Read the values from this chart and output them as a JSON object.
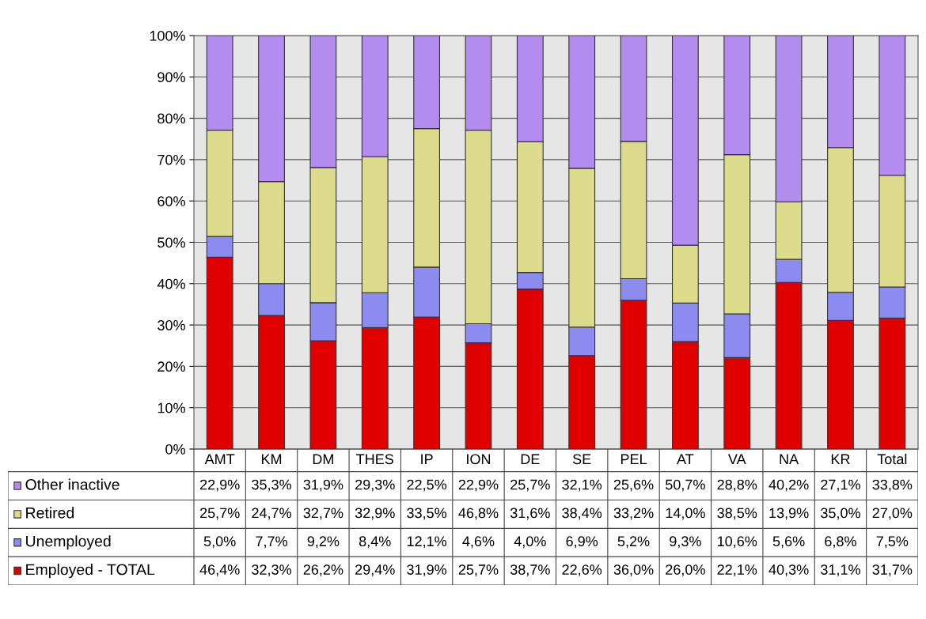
{
  "chart_data": {
    "type": "bar",
    "stacked": true,
    "categories": [
      "AMT",
      "KM",
      "DM",
      "THES",
      "IP",
      "ION",
      "DE",
      "SE",
      "PEL",
      "AT",
      "VA",
      "NA",
      "KR",
      "Total"
    ],
    "series": [
      {
        "name": "Employed - TOTAL",
        "color": "#e00000",
        "values": [
          46.4,
          32.3,
          26.2,
          29.4,
          31.9,
          25.7,
          38.7,
          22.6,
          36.0,
          26.0,
          22.1,
          40.3,
          31.1,
          31.7
        ],
        "value_labels": [
          "46,4%",
          "32,3%",
          "26,2%",
          "29,4%",
          "31,9%",
          "25,7%",
          "38,7%",
          "22,6%",
          "36,0%",
          "26,0%",
          "22,1%",
          "40,3%",
          "31,1%",
          "31,7%"
        ]
      },
      {
        "name": "Unemployed",
        "color": "#8c8cf0",
        "values": [
          5.0,
          7.7,
          9.2,
          8.4,
          12.1,
          4.6,
          4.0,
          6.9,
          5.2,
          9.3,
          10.6,
          5.6,
          6.8,
          7.5
        ],
        "value_labels": [
          "5,0%",
          "7,7%",
          "9,2%",
          "8,4%",
          "12,1%",
          "4,6%",
          "4,0%",
          "6,9%",
          "5,2%",
          "9,3%",
          "10,6%",
          "5,6%",
          "6,8%",
          "7,5%"
        ]
      },
      {
        "name": "Retired",
        "color": "#dcdc8c",
        "values": [
          25.7,
          24.7,
          32.7,
          32.9,
          33.5,
          46.8,
          31.6,
          38.4,
          33.2,
          14.0,
          38.5,
          13.9,
          35.0,
          27.0
        ],
        "value_labels": [
          "25,7%",
          "24,7%",
          "32,7%",
          "32,9%",
          "33,5%",
          "46,8%",
          "31,6%",
          "38,4%",
          "33,2%",
          "14,0%",
          "38,5%",
          "13,9%",
          "35,0%",
          "27,0%"
        ]
      },
      {
        "name": "Other inactive",
        "color": "#b48cf0",
        "values": [
          22.9,
          35.3,
          31.9,
          29.3,
          22.5,
          22.9,
          25.7,
          32.1,
          25.6,
          50.7,
          28.8,
          40.2,
          27.1,
          33.8
        ],
        "value_labels": [
          "22,9%",
          "35,3%",
          "31,9%",
          "29,3%",
          "22,5%",
          "22,9%",
          "25,7%",
          "32,1%",
          "25,6%",
          "50,7%",
          "28,8%",
          "40,2%",
          "27,1%",
          "33,8%"
        ]
      }
    ],
    "ylim": [
      0,
      100
    ],
    "yticks": [
      {
        "value": 0,
        "label": "0%"
      },
      {
        "value": 10,
        "label": "10%"
      },
      {
        "value": 20,
        "label": "20%"
      },
      {
        "value": 30,
        "label": "30%"
      },
      {
        "value": 40,
        "label": "40%"
      },
      {
        "value": 50,
        "label": "50%"
      },
      {
        "value": 60,
        "label": "60%"
      },
      {
        "value": 70,
        "label": "70%"
      },
      {
        "value": 80,
        "label": "80%"
      },
      {
        "value": 90,
        "label": "90%"
      },
      {
        "value": 100,
        "label": "100%"
      }
    ],
    "grid": "y",
    "legend": "bottom left"
  }
}
